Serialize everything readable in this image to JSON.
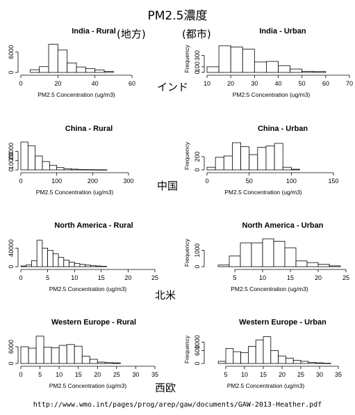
{
  "title": "PM2.5濃度",
  "labels": {
    "rural": "(地方)",
    "urban": "(都市)",
    "india": "インド",
    "china": "中国",
    "north_america": "北米",
    "western_europe": "西欧"
  },
  "source": "http://www.wmo.int/pages/prog/arep/gaw/documents/GAW-2013-Heather.pdf",
  "chart_data": [
    {
      "type": "bar",
      "title": "India - Rural",
      "xlabel": "PM2.5 Concentration (ug/m3)",
      "ylabel": "",
      "xlim": [
        0,
        60
      ],
      "ylim": [
        0,
        8000
      ],
      "xticks": [
        0,
        20,
        40,
        60
      ],
      "yticks": [
        0,
        6000
      ],
      "bin_edges": [
        5,
        10,
        15,
        20,
        25,
        30,
        35,
        40,
        45,
        50
      ],
      "values": [
        800,
        1700,
        8300,
        6600,
        2800,
        1600,
        1100,
        700,
        300
      ]
    },
    {
      "type": "bar",
      "title": "India - Urban",
      "xlabel": "PM2.5 Concentration (ug/m3)",
      "ylabel": "Frequency",
      "xlim": [
        10,
        70
      ],
      "ylim": [
        0,
        480
      ],
      "xticks": [
        10,
        20,
        30,
        40,
        50,
        60,
        70
      ],
      "yticks": [
        0,
        100,
        300
      ],
      "bin_edges": [
        10,
        15,
        20,
        25,
        30,
        35,
        40,
        45,
        50,
        55,
        60
      ],
      "values": [
        100,
        470,
        450,
        410,
        185,
        195,
        120,
        60,
        20,
        15
      ]
    },
    {
      "type": "bar",
      "title": "China - Rural",
      "xlabel": "PM2.5 Concentration (ug/m3)",
      "ylabel": "",
      "xlim": [
        0,
        300
      ],
      "ylim": [
        0,
        30000
      ],
      "xticks": [
        0,
        100,
        200,
        300
      ],
      "yticks": [
        0,
        10000,
        20000
      ],
      "bin_edges": [
        0,
        20,
        40,
        60,
        80,
        100,
        120,
        140,
        160,
        180,
        200,
        220,
        240
      ],
      "values": [
        30000,
        26000,
        15000,
        9000,
        5000,
        2500,
        1300,
        800,
        400,
        300,
        200,
        150
      ]
    },
    {
      "type": "bar",
      "title": "China - Urban",
      "xlabel": "PM2.5 Concentration (ug/m3)",
      "ylabel": "Frequency",
      "xlim": [
        0,
        150
      ],
      "ylim": [
        0,
        420
      ],
      "xticks": [
        0,
        50,
        100,
        150
      ],
      "yticks": [
        0,
        200
      ],
      "bin_edges": [
        0,
        10,
        20,
        30,
        40,
        50,
        60,
        70,
        80,
        90,
        100,
        110
      ],
      "values": [
        40,
        190,
        210,
        410,
        350,
        230,
        340,
        360,
        400,
        40,
        10
      ]
    },
    {
      "type": "bar",
      "title": "North America - Rural",
      "xlabel": "PM2.5 Concentration (ug/m3)",
      "ylabel": "",
      "xlim": [
        0,
        25
      ],
      "ylim": [
        0,
        60000
      ],
      "xticks": [
        0,
        5,
        10,
        15,
        20,
        25
      ],
      "yticks": [
        0,
        40000
      ],
      "bin_edges": [
        0,
        1,
        2,
        3,
        4,
        5,
        6,
        7,
        8,
        9,
        10,
        11,
        12,
        13,
        14,
        15,
        16
      ],
      "values": [
        1500,
        4000,
        13000,
        57000,
        40000,
        35000,
        28000,
        20000,
        14000,
        10000,
        7000,
        5000,
        3500,
        2500,
        1500,
        800
      ]
    },
    {
      "type": "bar",
      "title": "North America - Urban",
      "xlabel": "PM2.5 Concentration (ug/m3)",
      "ylabel": "Frequency",
      "xlim": [
        0,
        25
      ],
      "ylim": [
        0,
        1700
      ],
      "xticks": [
        5,
        10,
        15,
        20,
        25
      ],
      "yticks": [
        0,
        1000
      ],
      "bin_edges": [
        2,
        4,
        6,
        8,
        10,
        12,
        14,
        16,
        18,
        20,
        22,
        24
      ],
      "values": [
        100,
        650,
        1450,
        1450,
        1700,
        1550,
        1150,
        350,
        250,
        150,
        50
      ]
    },
    {
      "type": "bar",
      "title": "Western Europe - Rural",
      "xlabel": "PM2.5 Concentration (ug/m3)",
      "ylabel": "",
      "xlim": [
        0,
        35
      ],
      "ylim": [
        0,
        10000
      ],
      "xticks": [
        0,
        5,
        10,
        15,
        20,
        25,
        30,
        35
      ],
      "yticks": [
        0,
        6000
      ],
      "bin_edges": [
        0,
        2,
        4,
        6,
        8,
        10,
        12,
        14,
        16,
        18,
        20,
        22,
        24,
        26
      ],
      "values": [
        6000,
        5500,
        9800,
        5800,
        5600,
        6500,
        6800,
        6200,
        2600,
        1500,
        500,
        300,
        200
      ]
    },
    {
      "type": "bar",
      "title": "Western Europe - Urban",
      "xlabel": "PM2.5 Concentration (ug/m3)",
      "ylabel": "Frequency",
      "xlim": [
        0,
        35
      ],
      "ylim": [
        0,
        1300
      ],
      "xticks": [
        5,
        10,
        15,
        20,
        25,
        30,
        35
      ],
      "yticks": [
        0,
        600,
        1000
      ],
      "bin_edges": [
        3,
        5,
        7,
        9,
        11,
        13,
        15,
        17,
        19,
        21,
        23,
        25,
        27,
        29,
        31,
        33
      ],
      "values": [
        100,
        700,
        550,
        500,
        800,
        1100,
        1250,
        600,
        350,
        250,
        150,
        100,
        50,
        30,
        10
      ]
    }
  ]
}
